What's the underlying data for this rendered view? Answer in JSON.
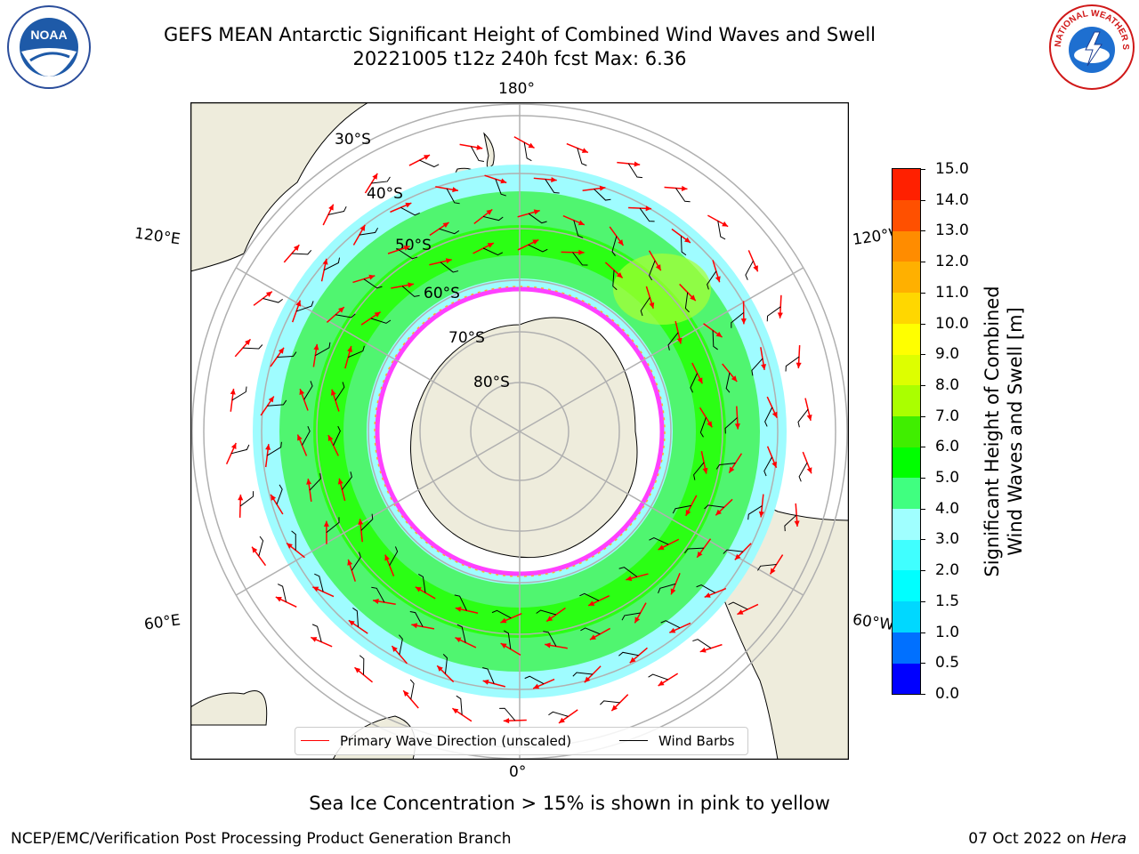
{
  "title": {
    "line1": "GEFS MEAN Antarctic Significant Height of Combined Wind Waves and Swell",
    "line2": "20221005 t12z 240h fcst   Max: 6.36"
  },
  "logos": {
    "left": {
      "icon": "noaa-logo",
      "text": "NOAA"
    },
    "right": {
      "icon": "nws-logo",
      "text": "NATIONAL WEATHER SERVICE"
    }
  },
  "map": {
    "projection": "south-polar-stereographic",
    "longitude_labels": {
      "top": "180°",
      "bottom": "0°",
      "upper_left": "120°E",
      "lower_left": "60°E",
      "upper_right": "120°W",
      "lower_right": "60°W"
    },
    "latitude_labels": [
      "30°S",
      "40°S",
      "50°S",
      "60°S",
      "70°S",
      "80°S"
    ],
    "colors": {
      "land": "#eeecdc",
      "grid": "#b0b0b0",
      "ice_edge": "#ff40ff",
      "ice_edge_secondary": "#ffb030"
    }
  },
  "colorbar": {
    "label_line1": "Significant Height of Combined",
    "label_line2": "Wind Waves and Swell [m]",
    "ticks": [
      "0.0",
      "0.5",
      "1.0",
      "1.5",
      "2.0",
      "3.0",
      "4.0",
      "5.0",
      "6.0",
      "7.0",
      "8.0",
      "9.0",
      "10.0",
      "11.0",
      "12.0",
      "13.0",
      "14.0",
      "15.0"
    ],
    "colors": [
      "#0000ff",
      "#0070ff",
      "#00d8ff",
      "#00ffff",
      "#40ffff",
      "#a0ffff",
      "#40ff80",
      "#00ff00",
      "#40ee00",
      "#aaff00",
      "#ddff00",
      "#ffff00",
      "#ffd700",
      "#ffb000",
      "#ff8c00",
      "#ff5000",
      "#ff2000"
    ]
  },
  "legend": {
    "wave_direction": "Primary Wave Direction (unscaled)",
    "wind_barbs": "Wind Barbs",
    "wave_color": "#ff0000",
    "barb_color": "#000000"
  },
  "caption": "Sea Ice Concentration > 15% is shown in pink to yellow",
  "footer": {
    "left": "NCEP/EMC/Verification Post Processing Product Generation Branch",
    "date": "07 Oct 2022 on ",
    "system": "Hera"
  }
}
